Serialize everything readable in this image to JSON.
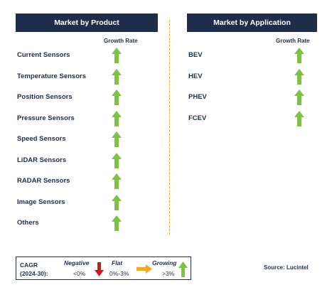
{
  "product_panel": {
    "title": "Market by Product",
    "growth_rate_label": "Growth Rate",
    "items": [
      {
        "label": "Current Sensors",
        "trend": "growing"
      },
      {
        "label": "Temperature Sensors",
        "trend": "growing"
      },
      {
        "label": "Position Sensors",
        "trend": "growing"
      },
      {
        "label": "Pressure Sensors",
        "trend": "growing"
      },
      {
        "label": "Speed Sensors",
        "trend": "growing"
      },
      {
        "label": "LiDAR Sensors",
        "trend": "growing"
      },
      {
        "label": "RADAR Sensors",
        "trend": "growing"
      },
      {
        "label": "Image Sensors",
        "trend": "growing"
      },
      {
        "label": "Others",
        "trend": "growing"
      }
    ]
  },
  "application_panel": {
    "title": "Market by Application",
    "growth_rate_label": "Growth Rate",
    "items": [
      {
        "label": "BEV",
        "trend": "growing"
      },
      {
        "label": "HEV",
        "trend": "growing"
      },
      {
        "label": "PHEV",
        "trend": "growing"
      },
      {
        "label": "FCEV",
        "trend": "growing"
      }
    ]
  },
  "legend": {
    "cagr_label": "CAGR",
    "period_label": "(2024-30):",
    "negative": {
      "label": "Negative",
      "range": "<0%"
    },
    "flat": {
      "label": "Flat",
      "range": "0%-3%"
    },
    "growing": {
      "label": "Growing",
      "range": ">3%"
    }
  },
  "source": "Source: Lucintel",
  "colors": {
    "header_bg": "#1f2d4d",
    "divider": "#f5a623",
    "growing_arrow": "#7dc242",
    "negative_arrow": "#c0201e",
    "flat_arrow": "#f5a623"
  },
  "icons": {
    "growing": "up-arrow-icon",
    "negative": "down-arrow-icon",
    "flat": "right-arrow-icon"
  }
}
